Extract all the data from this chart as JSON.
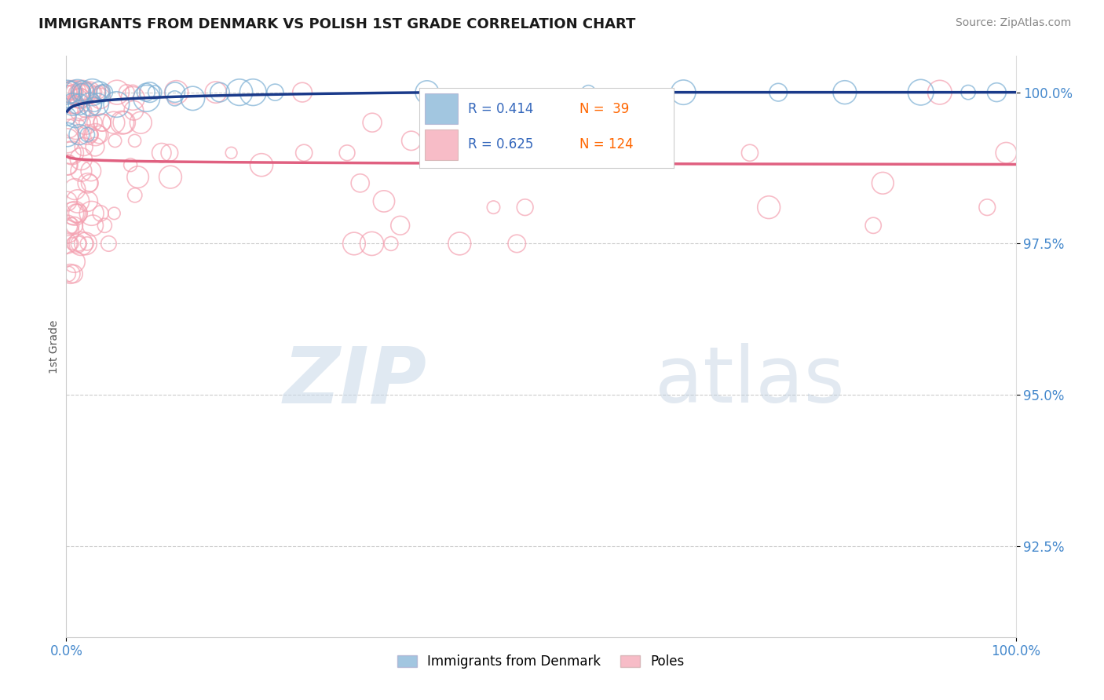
{
  "title": "IMMIGRANTS FROM DENMARK VS POLISH 1ST GRADE CORRELATION CHART",
  "source": "Source: ZipAtlas.com",
  "ylabel": "1st Grade",
  "xlim": [
    0.0,
    1.0
  ],
  "ylim": [
    0.91,
    1.006
  ],
  "yticks": [
    0.925,
    0.95,
    0.975,
    1.0
  ],
  "ytick_labels": [
    "92.5%",
    "95.0%",
    "97.5%",
    "100.0%"
  ],
  "xticks": [
    0.0,
    1.0
  ],
  "xtick_labels": [
    "0.0%",
    "100.0%"
  ],
  "legend_r_denmark": "R = 0.414",
  "legend_n_denmark": "N =  39",
  "legend_r_poles": "R = 0.625",
  "legend_n_poles": "N = 124",
  "color_denmark": "#7BAFD4",
  "color_poles": "#F4A0B0",
  "trendline_denmark": "#1A3A8A",
  "trendline_poles": "#E06080",
  "watermark_zip_color": "#C8D8E8",
  "watermark_atlas_color": "#C0D0E0"
}
